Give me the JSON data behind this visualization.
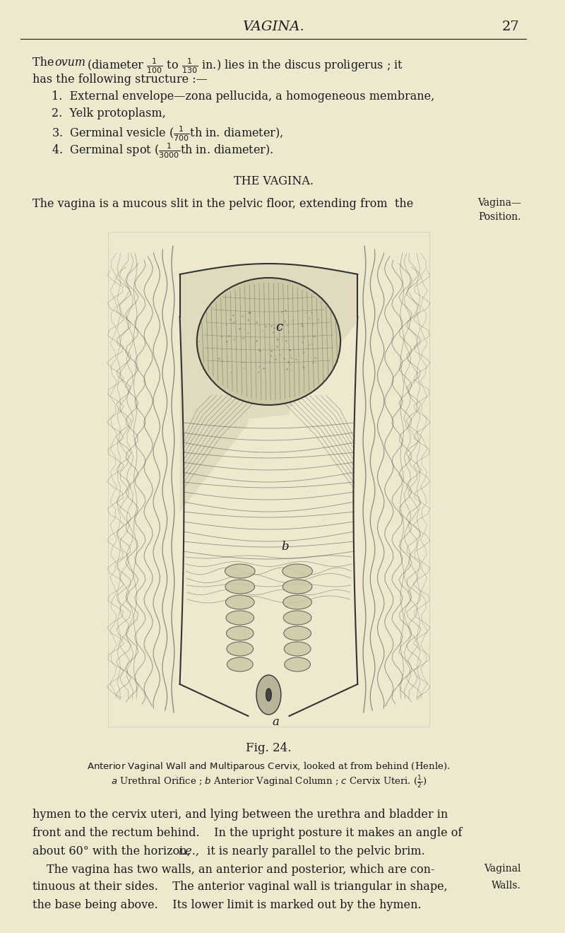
{
  "bg_color": "#EDE8CE",
  "text_color": "#1a1a1a",
  "page_width": 8.0,
  "page_height": 13.2,
  "dpi": 100,
  "header_title": "VAGINA.",
  "header_page": "27",
  "fig_caption_title": "Fig. 24.",
  "fig_caption_line1_caps": "Anterior Vaginal Wall and Multiparous Cervix",
  "fig_caption_line1_rest": ", looked at from behind (Henle).",
  "fig_caption_line2": "a Urethral Orifice ; b Anterior Vaginal Column ; c Cervix Uteri. ({\\frac{1}{2}})"
}
